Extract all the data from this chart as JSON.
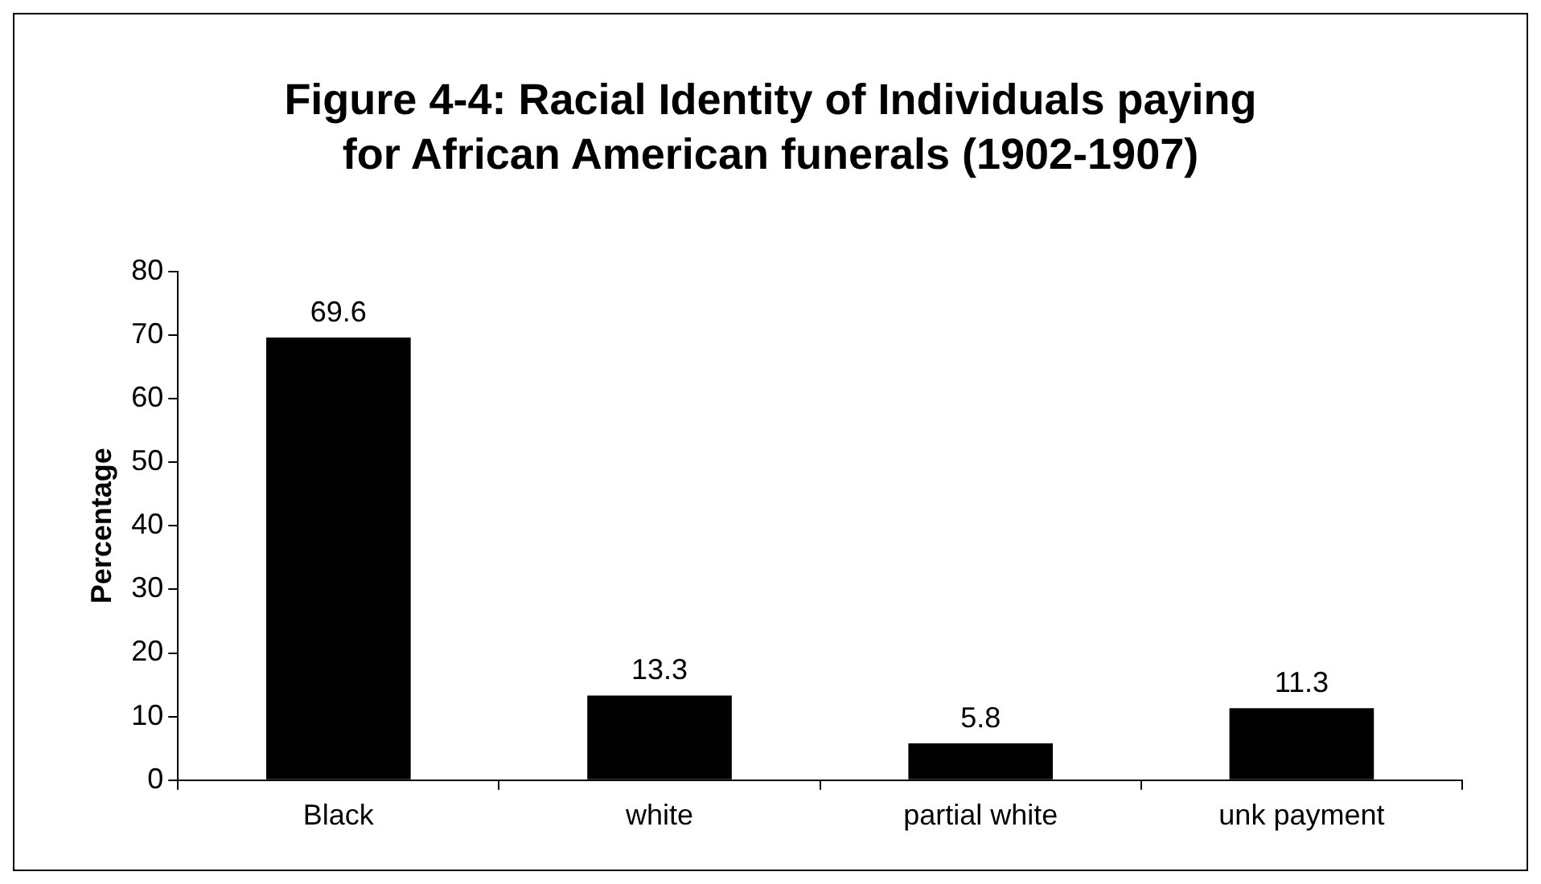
{
  "chart_data": {
    "type": "bar",
    "title": "Figure 4-4: Racial Identity of Individuals paying for African American funerals (1902-1907)",
    "ylabel": "Percentage",
    "categories": [
      "Black",
      "white",
      "partial white",
      "unk payment"
    ],
    "values": [
      69.6,
      13.3,
      5.8,
      11.3
    ],
    "color": "#000000",
    "ylim": [
      0,
      80
    ],
    "yticks": [
      0,
      10,
      20,
      30,
      40,
      50,
      60,
      70,
      80
    ],
    "grid": false,
    "legend": false,
    "data_labels": true
  }
}
